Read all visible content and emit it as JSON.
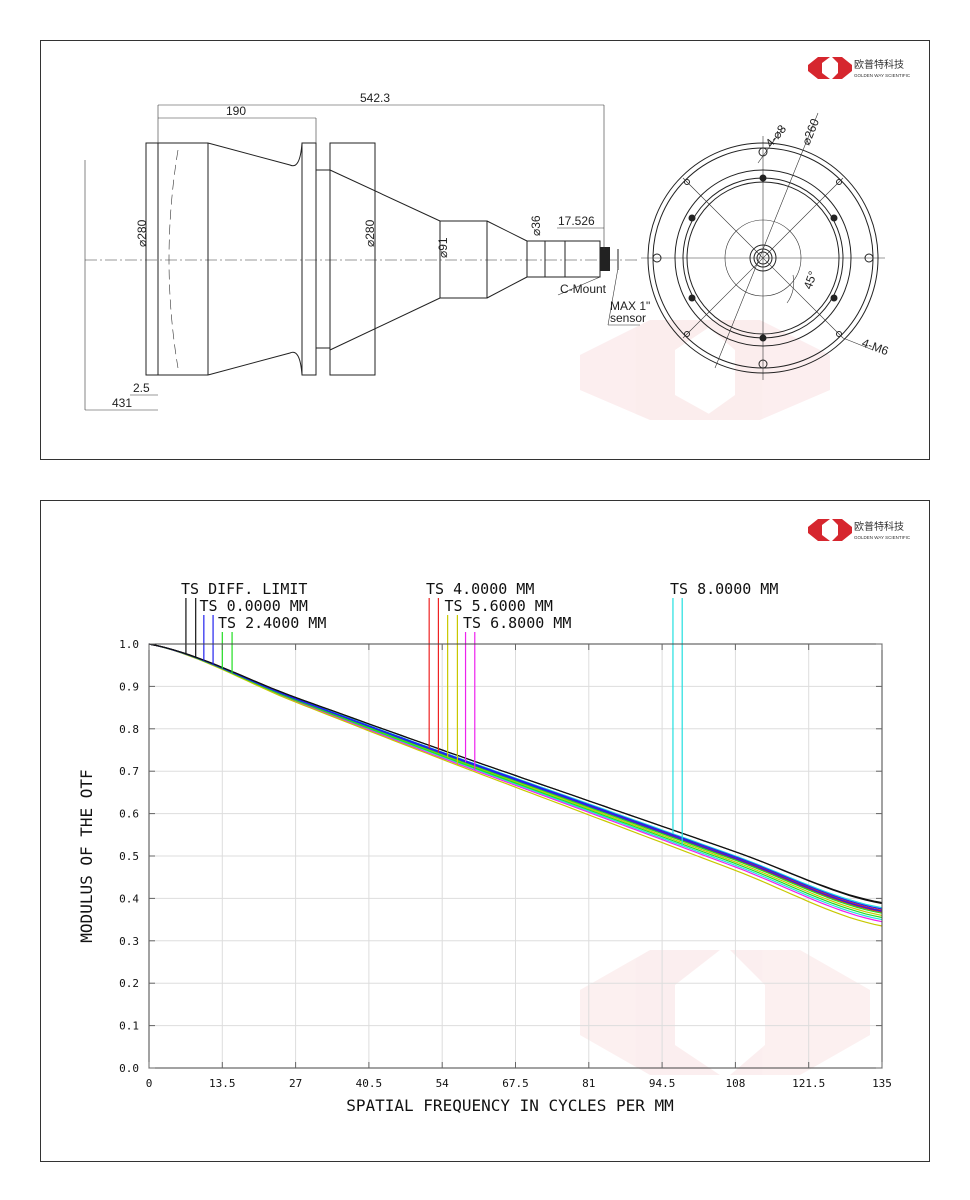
{
  "logo": {
    "brand_cn": "欧普特科技",
    "brand_en": "GOLDEN WAY SCIENTIFIC",
    "color": "#d6262e"
  },
  "drawing": {
    "overall_length": "542.3",
    "front_length": "190",
    "front_diameter": "⌀280",
    "flange_diameter": "⌀280",
    "mid_diameter": "⌀91",
    "rear_diameter": "⌀36",
    "back_focal": "17.526",
    "mount_label": "C-Mount",
    "sensor_label_1": "MAX 1\"",
    "sensor_label_2": "sensor",
    "front_gap": "2.5",
    "working_distance": "431",
    "holes_label": "4-⌀8",
    "bolt_circle": "⌀260",
    "angle_label": "45°",
    "thread_label": "4-M6"
  },
  "chart_data": {
    "type": "line",
    "title": "",
    "xlabel": "SPATIAL FREQUENCY IN CYCLES PER MM",
    "ylabel": "MODULUS OF THE OTF",
    "xlim": [
      0,
      135
    ],
    "ylim": [
      0,
      1.0
    ],
    "xticks": [
      "0",
      "13.5",
      "27",
      "40.5",
      "54",
      "67.5",
      "81",
      "94.5",
      "108",
      "121.5",
      "135"
    ],
    "yticks": [
      "0.0",
      "0.1",
      "0.2",
      "0.3",
      "0.4",
      "0.5",
      "0.6",
      "0.7",
      "0.8",
      "0.9",
      "1.0"
    ],
    "grid": true,
    "legend_placement": "top",
    "x": [
      0,
      27,
      54,
      81,
      108,
      135
    ],
    "series": [
      {
        "name": "TS DIFF. LIMIT",
        "color": "#111111",
        "marker_freq": [
          6.8,
          8.6
        ],
        "tangential": [
          1,
          0.874,
          0.75,
          0.63,
          0.51,
          0.39
        ],
        "sagittal": [
          1,
          0.874,
          0.75,
          0.63,
          0.51,
          0.388
        ]
      },
      {
        "name": "TS 0.0000 MM",
        "color": "#2222ee",
        "marker_freq": [
          10.1,
          11.8
        ],
        "tangential": [
          1,
          0.871,
          0.744,
          0.621,
          0.498,
          0.375
        ],
        "sagittal": [
          1,
          0.87,
          0.742,
          0.618,
          0.494,
          0.37
        ]
      },
      {
        "name": "TS 2.4000 MM",
        "color": "#22dd22",
        "marker_freq": [
          13.5,
          15.3
        ],
        "tangential": [
          1,
          0.869,
          0.74,
          0.615,
          0.49,
          0.365
        ],
        "sagittal": [
          1,
          0.867,
          0.736,
          0.609,
          0.482,
          0.355
        ]
      },
      {
        "name": "TS 4.0000 MM",
        "color": "#ee2222",
        "marker_freq": [
          51.6,
          53.3
        ],
        "tangential": [
          1,
          0.87,
          0.743,
          0.619,
          0.496,
          0.372
        ],
        "sagittal": [
          1,
          0.869,
          0.741,
          0.617,
          0.492,
          0.368
        ]
      },
      {
        "name": "TS 5.6000 MM",
        "color": "#c8c800",
        "marker_freq": [
          55.0,
          56.8
        ],
        "tangential": [
          1,
          0.868,
          0.738,
          0.612,
          0.486,
          0.36
        ],
        "sagittal": [
          1,
          0.863,
          0.728,
          0.597,
          0.466,
          0.335
        ]
      },
      {
        "name": "TS 6.8000 MM",
        "color": "#ee22ee",
        "marker_freq": [
          58.3,
          60.0
        ],
        "tangential": [
          1,
          0.869,
          0.741,
          0.617,
          0.492,
          0.368
        ],
        "sagittal": [
          1,
          0.865,
          0.731,
          0.603,
          0.474,
          0.345
        ]
      },
      {
        "name": "TS 8.0000 MM",
        "color": "#22e0e0",
        "marker_freq": [
          96.5,
          98.2
        ],
        "tangential": [
          1,
          0.872,
          0.745,
          0.623,
          0.5,
          0.378
        ],
        "sagittal": [
          1,
          0.866,
          0.734,
          0.606,
          0.478,
          0.35
        ]
      }
    ]
  }
}
